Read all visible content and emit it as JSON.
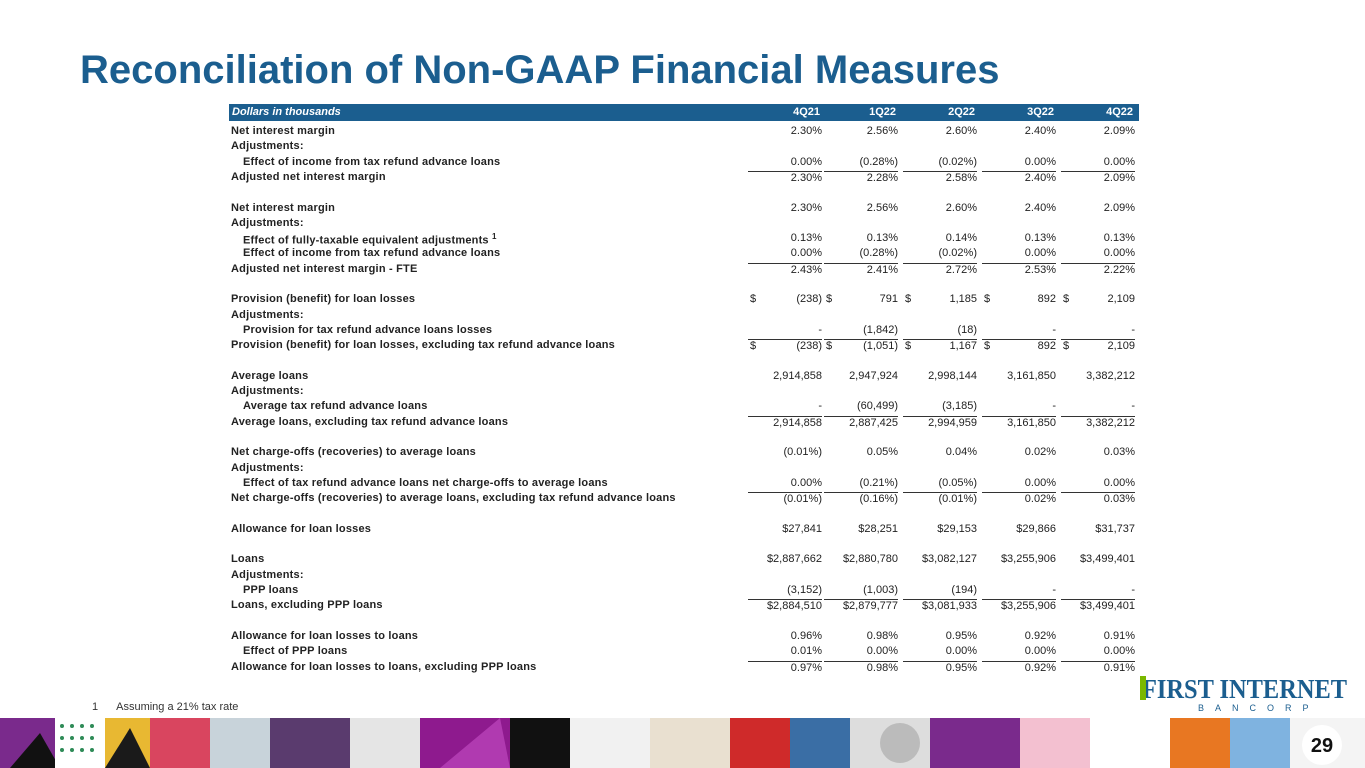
{
  "title": "Reconciliation of Non-GAAP Financial Measures",
  "table": {
    "header": [
      "Dollars in thousands",
      "4Q21",
      "1Q22",
      "2Q22",
      "3Q22",
      "4Q22"
    ],
    "sections": [
      [
        {
          "label": "Net interest margin",
          "values": [
            "2.30%",
            "2.56%",
            "2.60%",
            "2.40%",
            "2.09%"
          ]
        },
        {
          "label": "Adjustments:"
        },
        {
          "label": "Effect of income from tax refund advance loans",
          "indent": true,
          "values": [
            "0.00%",
            "(0.28%)",
            "(0.02%)",
            "0.00%",
            "0.00%"
          ]
        },
        {
          "label": "Adjusted net interest margin",
          "total": true,
          "values": [
            "2.30%",
            "2.28%",
            "2.58%",
            "2.40%",
            "2.09%"
          ]
        }
      ],
      [
        {
          "label": "Net interest margin",
          "values": [
            "2.30%",
            "2.56%",
            "2.60%",
            "2.40%",
            "2.09%"
          ]
        },
        {
          "label": "Adjustments:"
        },
        {
          "label": "Effect of fully-taxable equivalent adjustments",
          "sup": "1",
          "indent": true,
          "values": [
            "0.13%",
            "0.13%",
            "0.14%",
            "0.13%",
            "0.13%"
          ]
        },
        {
          "label": "Effect of income from tax refund advance loans",
          "indent": true,
          "values": [
            "0.00%",
            "(0.28%)",
            "(0.02%)",
            "0.00%",
            "0.00%"
          ]
        },
        {
          "label": "Adjusted net interest margin - FTE",
          "total": true,
          "values": [
            "2.43%",
            "2.41%",
            "2.72%",
            "2.53%",
            "2.22%"
          ]
        }
      ],
      [
        {
          "label": "Provision (benefit) for loan losses",
          "currency": "$",
          "values": [
            "(238)",
            "791",
            "1,185",
            "892",
            "2,109"
          ]
        },
        {
          "label": "Adjustments:"
        },
        {
          "label": "Provision for tax refund advance loans losses",
          "indent": true,
          "values": [
            "-",
            "(1,842)",
            "(18)",
            "-",
            "-"
          ]
        },
        {
          "label": "Provision (benefit) for loan losses, excluding tax refund advance loans",
          "total": true,
          "currency": "$",
          "values": [
            "(238)",
            "(1,051)",
            "1,167",
            "892",
            "2,109"
          ]
        }
      ],
      [
        {
          "label": "Average loans",
          "values": [
            "2,914,858",
            "2,947,924",
            "2,998,144",
            "3,161,850",
            "3,382,212"
          ]
        },
        {
          "label": "Adjustments:"
        },
        {
          "label": "Average tax refund advance loans",
          "indent": true,
          "values": [
            "-",
            "(60,499)",
            "(3,185)",
            "-",
            "-"
          ]
        },
        {
          "label": "Average loans, excluding tax refund advance loans",
          "total": true,
          "values": [
            "2,914,858",
            "2,887,425",
            "2,994,959",
            "3,161,850",
            "3,382,212"
          ]
        }
      ],
      [
        {
          "label": "Net charge-offs (recoveries) to average loans",
          "values": [
            "(0.01%)",
            "0.05%",
            "0.04%",
            "0.02%",
            "0.03%"
          ]
        },
        {
          "label": "Adjustments:"
        },
        {
          "label": "Effect of tax refund advance loans net charge-offs to average loans",
          "indent": true,
          "values": [
            "0.00%",
            "(0.21%)",
            "(0.05%)",
            "0.00%",
            "0.00%"
          ]
        },
        {
          "label": "Net charge-offs (recoveries) to average loans, excluding tax refund advance loans",
          "total": true,
          "values": [
            "(0.01%)",
            "(0.16%)",
            "(0.01%)",
            "0.02%",
            "0.03%"
          ]
        }
      ],
      [
        {
          "label": "Allowance for loan losses",
          "values": [
            "$27,841",
            "$28,251",
            "$29,153",
            "$29,866",
            "$31,737"
          ]
        }
      ],
      [
        {
          "label": "Loans",
          "values": [
            "$2,887,662",
            "$2,880,780",
            "$3,082,127",
            "$3,255,906",
            "$3,499,401"
          ]
        },
        {
          "label": "Adjustments:"
        },
        {
          "label": "PPP loans",
          "indent": true,
          "values": [
            "(3,152)",
            "(1,003)",
            "(194)",
            "-",
            "-"
          ]
        },
        {
          "label": "Loans, excluding PPP loans",
          "total": true,
          "values": [
            "$2,884,510",
            "$2,879,777",
            "$3,081,933",
            "$3,255,906",
            "$3,499,401"
          ]
        }
      ],
      [
        {
          "label": "Allowance for loan losses to loans",
          "values": [
            "0.96%",
            "0.98%",
            "0.95%",
            "0.92%",
            "0.91%"
          ]
        },
        {
          "label": "Effect of PPP loans",
          "indent": true,
          "values": [
            "0.01%",
            "0.00%",
            "0.00%",
            "0.00%",
            "0.00%"
          ]
        },
        {
          "label": "Allowance for loan losses to loans, excluding PPP loans",
          "total": true,
          "values": [
            "0.97%",
            "0.98%",
            "0.95%",
            "0.92%",
            "0.91%"
          ]
        }
      ]
    ]
  },
  "footnote": {
    "marker": "1",
    "text": "Assuming a 21% tax rate"
  },
  "logo": {
    "name": "FIRST INTERNET",
    "sub": "BANCORP"
  },
  "page_number": "29"
}
